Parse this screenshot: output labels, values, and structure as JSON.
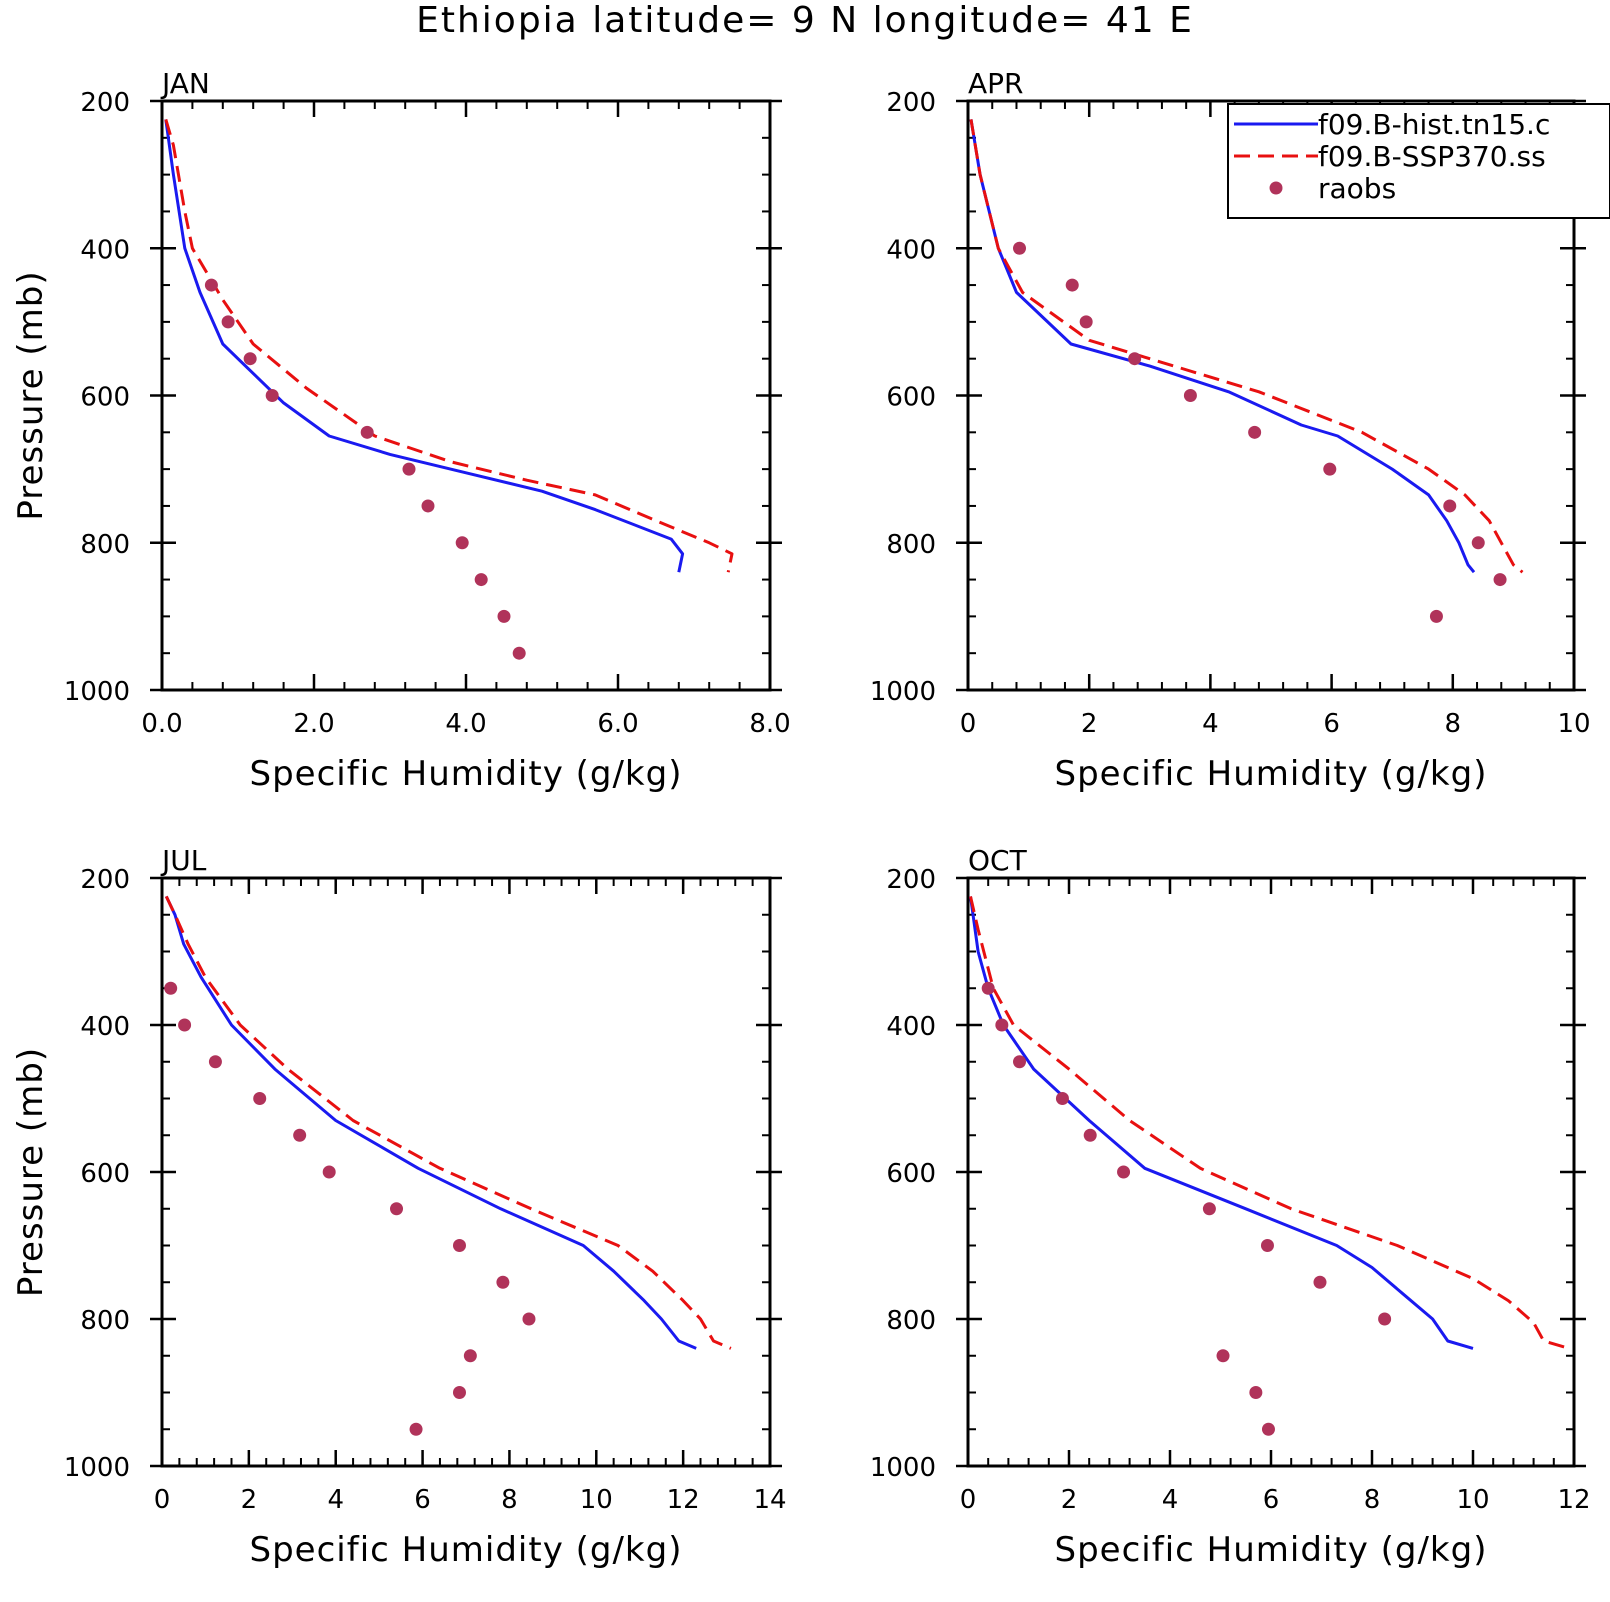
{
  "title": "Ethiopia  latitude= 9 N longitude= 41 E",
  "colors": {
    "hist": "#1a1af0",
    "ssp": "#e81010",
    "raobs": "#b0335a"
  },
  "legend": {
    "entries": [
      "f09.B-hist.tn15.c",
      "f09.B-SSP370.ss",
      "raobs"
    ]
  },
  "chart_data": [
    {
      "type": "line",
      "panel": "JAN",
      "xlabel": "Specific Humidity (g/kg)",
      "ylabel": "Pressure (mb)",
      "xlim": [
        0,
        8
      ],
      "ylim": [
        200,
        1000
      ],
      "y_inverted": true,
      "xticks": [
        0,
        2,
        4,
        6,
        8
      ],
      "xtick_labels": [
        "0.0",
        "2.0",
        "4.0",
        "6.0",
        "8.0"
      ],
      "yticks": [
        200,
        400,
        600,
        800,
        1000
      ],
      "ytick_labels": [
        "200",
        "400",
        "600",
        "800",
        "1000"
      ],
      "legend": false,
      "series": [
        {
          "key": "hist",
          "style": "solid",
          "points": [
            [
              0.05,
              225
            ],
            [
              0.15,
              300
            ],
            [
              0.3,
              400
            ],
            [
              0.5,
              460
            ],
            [
              0.8,
              530
            ],
            [
              1.3,
              580
            ],
            [
              1.6,
              610
            ],
            [
              2.2,
              655
            ],
            [
              3.0,
              680
            ],
            [
              4.0,
              705
            ],
            [
              5.0,
              730
            ],
            [
              5.7,
              755
            ],
            [
              6.7,
              795
            ],
            [
              6.85,
              815
            ],
            [
              6.8,
              840
            ]
          ]
        },
        {
          "key": "ssp",
          "style": "dashed",
          "points": [
            [
              0.05,
              225
            ],
            [
              0.15,
              260
            ],
            [
              0.3,
              350
            ],
            [
              0.4,
              400
            ],
            [
              0.8,
              470
            ],
            [
              1.2,
              530
            ],
            [
              1.9,
              590
            ],
            [
              2.8,
              655
            ],
            [
              3.8,
              690
            ],
            [
              4.8,
              715
            ],
            [
              5.7,
              735
            ],
            [
              6.5,
              770
            ],
            [
              7.2,
              800
            ],
            [
              7.5,
              815
            ],
            [
              7.45,
              840
            ]
          ]
        },
        {
          "key": "raobs",
          "style": "markers",
          "points": [
            [
              0.65,
              450
            ],
            [
              0.87,
              500
            ],
            [
              1.16,
              550
            ],
            [
              1.45,
              600
            ],
            [
              2.7,
              650
            ],
            [
              3.25,
              700
            ],
            [
              3.5,
              750
            ],
            [
              3.95,
              800
            ],
            [
              4.2,
              850
            ],
            [
              4.5,
              900
            ],
            [
              4.7,
              950
            ]
          ]
        }
      ]
    },
    {
      "type": "line",
      "panel": "APR",
      "xlabel": "Specific Humidity (g/kg)",
      "ylabel": "",
      "xlim": [
        0,
        10
      ],
      "ylim": [
        200,
        1000
      ],
      "y_inverted": true,
      "xticks": [
        0,
        2,
        4,
        6,
        8,
        10
      ],
      "xtick_labels": [
        "0",
        "2",
        "4",
        "6",
        "8",
        "10"
      ],
      "yticks": [
        200,
        400,
        600,
        800,
        1000
      ],
      "ytick_labels": [
        "200",
        "400",
        "600",
        "800",
        "1000"
      ],
      "legend": true,
      "series": [
        {
          "key": "hist",
          "style": "solid",
          "points": [
            [
              0.05,
              225
            ],
            [
              0.2,
              300
            ],
            [
              0.5,
              400
            ],
            [
              0.8,
              460
            ],
            [
              1.7,
              530
            ],
            [
              3.0,
              560
            ],
            [
              4.3,
              595
            ],
            [
              5.5,
              640
            ],
            [
              6.1,
              655
            ],
            [
              7.0,
              700
            ],
            [
              7.6,
              735
            ],
            [
              7.9,
              770
            ],
            [
              8.1,
              800
            ],
            [
              8.25,
              830
            ],
            [
              8.35,
              840
            ]
          ]
        },
        {
          "key": "ssp",
          "style": "dashed",
          "points": [
            [
              0.05,
              225
            ],
            [
              0.2,
              300
            ],
            [
              0.5,
              400
            ],
            [
              0.9,
              460
            ],
            [
              2.0,
              525
            ],
            [
              3.2,
              555
            ],
            [
              4.8,
              595
            ],
            [
              6.5,
              650
            ],
            [
              7.6,
              700
            ],
            [
              8.2,
              735
            ],
            [
              8.6,
              770
            ],
            [
              8.8,
              800
            ],
            [
              9.0,
              830
            ],
            [
              9.15,
              840
            ]
          ]
        },
        {
          "key": "raobs",
          "style": "markers",
          "points": [
            [
              0.85,
              400
            ],
            [
              1.72,
              450
            ],
            [
              1.95,
              500
            ],
            [
              2.75,
              550
            ],
            [
              3.67,
              600
            ],
            [
              4.73,
              650
            ],
            [
              5.97,
              700
            ],
            [
              7.95,
              750
            ],
            [
              8.42,
              800
            ],
            [
              8.78,
              850
            ],
            [
              7.73,
              900
            ]
          ]
        }
      ]
    },
    {
      "type": "line",
      "panel": "JUL",
      "xlabel": "Specific Humidity (g/kg)",
      "ylabel": "Pressure (mb)",
      "xlim": [
        0,
        14
      ],
      "ylim": [
        200,
        1000
      ],
      "y_inverted": true,
      "xticks": [
        0,
        2,
        4,
        6,
        8,
        10,
        12,
        14
      ],
      "xtick_labels": [
        "0",
        "2",
        "4",
        "6",
        "8",
        "10",
        "12",
        "14"
      ],
      "yticks": [
        200,
        400,
        600,
        800,
        1000
      ],
      "ytick_labels": [
        "200",
        "400",
        "600",
        "800",
        "1000"
      ],
      "legend": false,
      "series": [
        {
          "key": "hist",
          "style": "solid",
          "points": [
            [
              0.1,
              225
            ],
            [
              0.3,
              250
            ],
            [
              0.5,
              290
            ],
            [
              0.9,
              335
            ],
            [
              1.6,
              400
            ],
            [
              2.6,
              460
            ],
            [
              4.0,
              530
            ],
            [
              5.9,
              595
            ],
            [
              7.8,
              650
            ],
            [
              9.7,
              700
            ],
            [
              10.4,
              735
            ],
            [
              11.1,
              775
            ],
            [
              11.5,
              800
            ],
            [
              11.9,
              830
            ],
            [
              12.3,
              840
            ]
          ]
        },
        {
          "key": "ssp",
          "style": "dashed",
          "points": [
            [
              0.1,
              225
            ],
            [
              0.3,
              250
            ],
            [
              0.6,
              290
            ],
            [
              1.0,
              335
            ],
            [
              1.8,
              400
            ],
            [
              2.9,
              460
            ],
            [
              4.4,
              530
            ],
            [
              6.4,
              595
            ],
            [
              8.5,
              650
            ],
            [
              10.5,
              700
            ],
            [
              11.3,
              735
            ],
            [
              12.0,
              775
            ],
            [
              12.4,
              800
            ],
            [
              12.7,
              830
            ],
            [
              13.1,
              840
            ]
          ]
        },
        {
          "key": "raobs",
          "style": "markers",
          "points": [
            [
              0.2,
              350
            ],
            [
              0.52,
              400
            ],
            [
              1.23,
              450
            ],
            [
              2.25,
              500
            ],
            [
              3.17,
              550
            ],
            [
              3.85,
              600
            ],
            [
              5.4,
              650
            ],
            [
              6.85,
              700
            ],
            [
              7.85,
              750
            ],
            [
              8.45,
              800
            ],
            [
              7.1,
              850
            ],
            [
              6.85,
              900
            ],
            [
              5.85,
              950
            ]
          ]
        }
      ]
    },
    {
      "type": "line",
      "panel": "OCT",
      "xlabel": "Specific Humidity (g/kg)",
      "ylabel": "",
      "xlim": [
        0,
        12
      ],
      "ylim": [
        200,
        1000
      ],
      "y_inverted": true,
      "xticks": [
        0,
        2,
        4,
        6,
        8,
        10,
        12
      ],
      "xtick_labels": [
        "0",
        "2",
        "4",
        "6",
        "8",
        "10",
        "12"
      ],
      "yticks": [
        200,
        400,
        600,
        800,
        1000
      ],
      "ytick_labels": [
        "200",
        "400",
        "600",
        "800",
        "1000"
      ],
      "legend": false,
      "series": [
        {
          "key": "hist",
          "style": "solid",
          "points": [
            [
              0.05,
              225
            ],
            [
              0.2,
              300
            ],
            [
              0.4,
              350
            ],
            [
              0.7,
              400
            ],
            [
              1.3,
              460
            ],
            [
              2.4,
              530
            ],
            [
              3.5,
              595
            ],
            [
              5.5,
              650
            ],
            [
              7.3,
              700
            ],
            [
              8.0,
              730
            ],
            [
              8.6,
              765
            ],
            [
              9.2,
              800
            ],
            [
              9.5,
              830
            ],
            [
              10.0,
              840
            ]
          ]
        },
        {
          "key": "ssp",
          "style": "dashed",
          "points": [
            [
              0.05,
              225
            ],
            [
              0.2,
              270
            ],
            [
              0.5,
              350
            ],
            [
              0.9,
              400
            ],
            [
              2.0,
              460
            ],
            [
              3.2,
              530
            ],
            [
              4.6,
              595
            ],
            [
              6.4,
              650
            ],
            [
              8.5,
              700
            ],
            [
              10.0,
              745
            ],
            [
              10.7,
              775
            ],
            [
              11.2,
              805
            ],
            [
              11.4,
              830
            ],
            [
              11.9,
              840
            ]
          ]
        },
        {
          "key": "raobs",
          "style": "markers",
          "points": [
            [
              0.4,
              350
            ],
            [
              0.67,
              400
            ],
            [
              1.02,
              450
            ],
            [
              1.87,
              500
            ],
            [
              2.42,
              550
            ],
            [
              3.08,
              600
            ],
            [
              4.78,
              650
            ],
            [
              5.93,
              700
            ],
            [
              6.97,
              750
            ],
            [
              8.25,
              800
            ],
            [
              5.05,
              850
            ],
            [
              5.7,
              900
            ],
            [
              5.95,
              950
            ]
          ]
        }
      ]
    }
  ]
}
